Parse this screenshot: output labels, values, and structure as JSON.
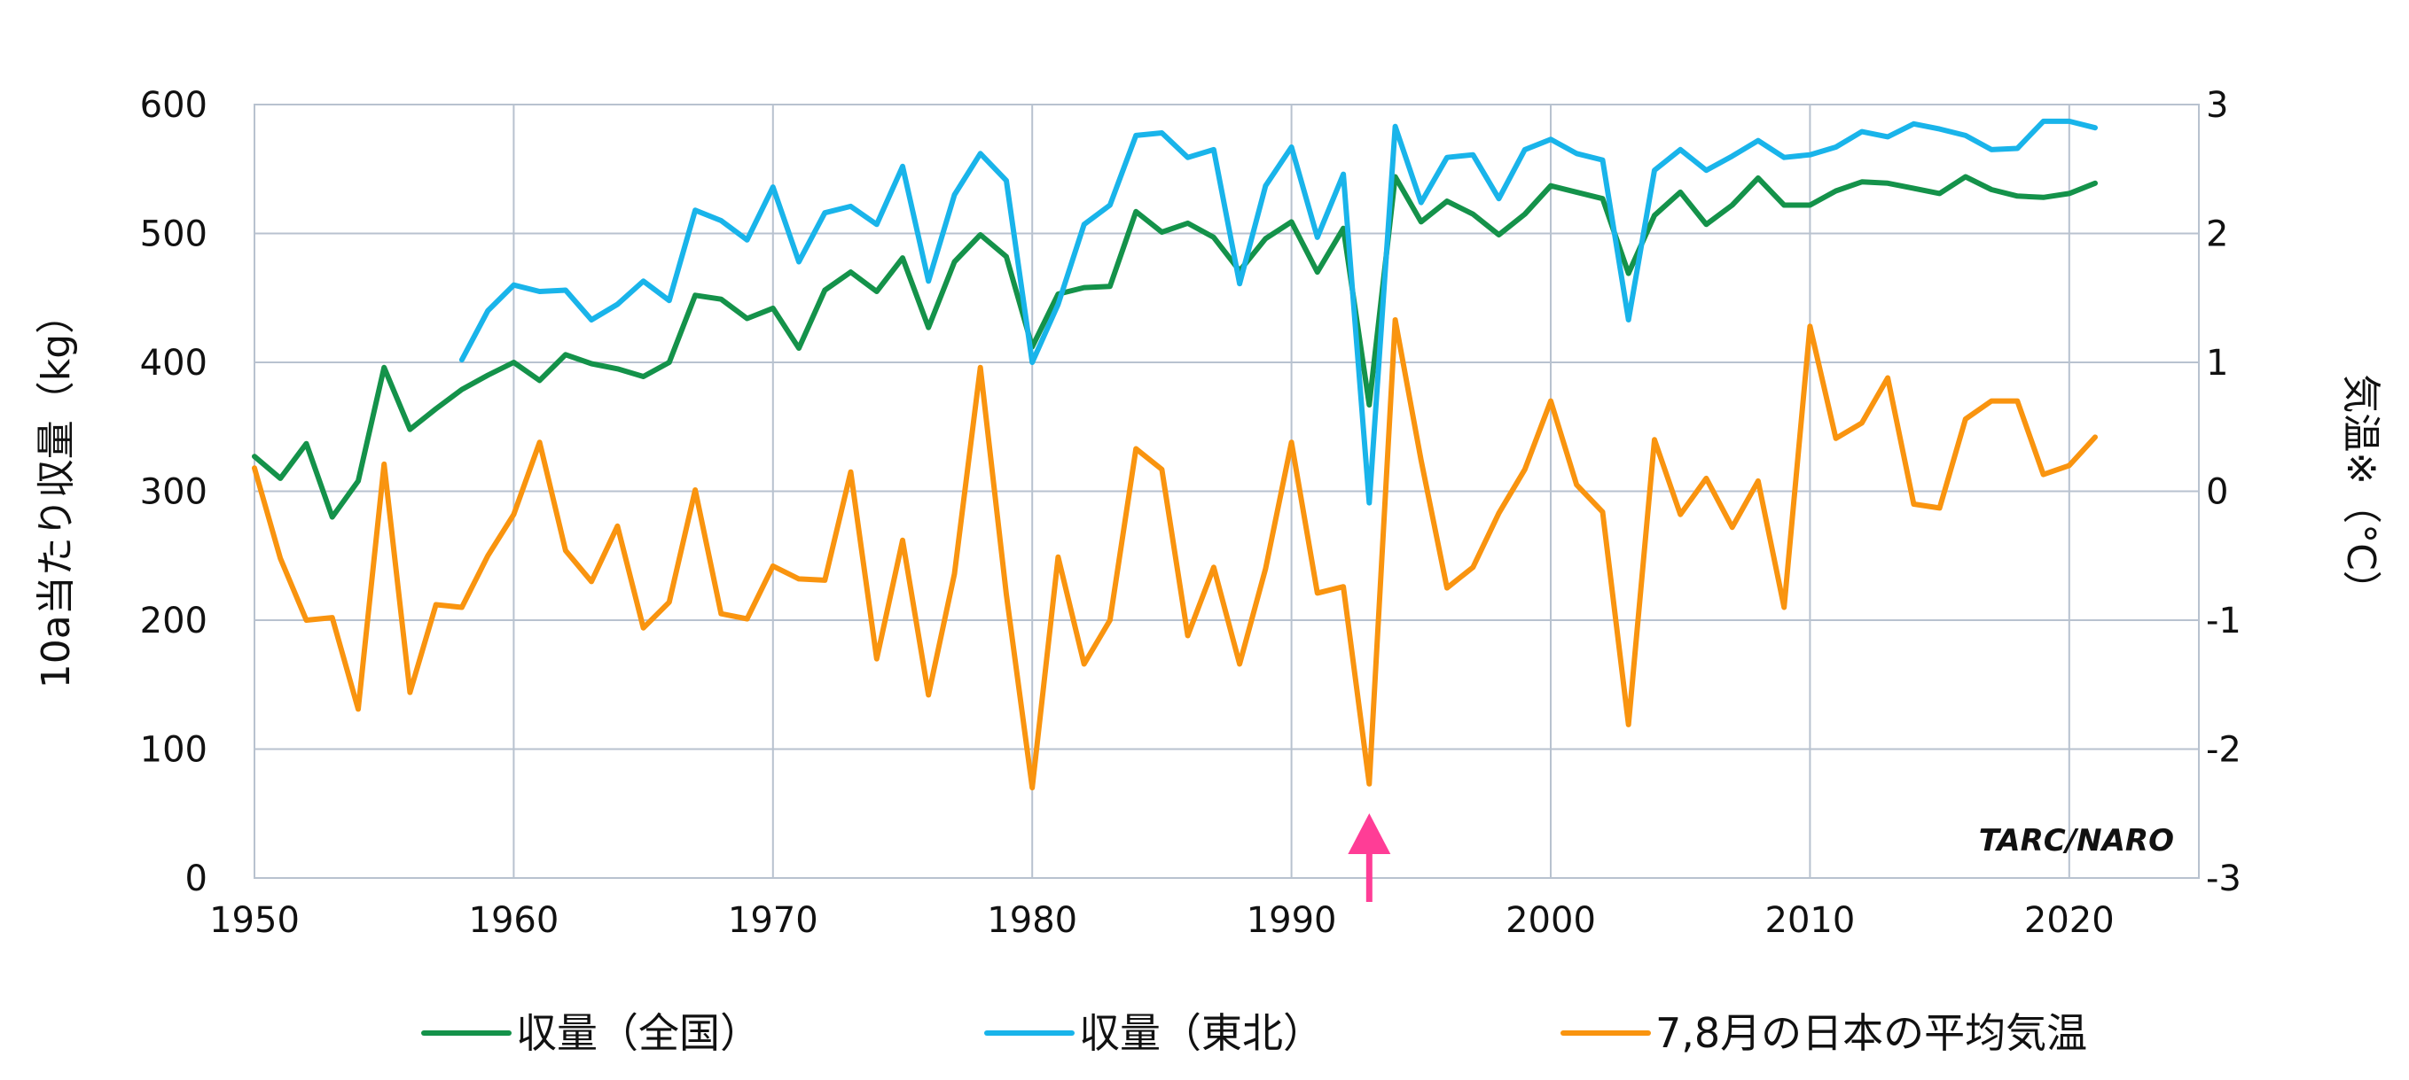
{
  "chart_data": {
    "type": "line",
    "title": "",
    "xlabel": "",
    "ylabel": "10a当たり収量（kg）",
    "ylabel_right": "気温※（°C）",
    "xlim": [
      1950,
      2025
    ],
    "ylim": [
      0,
      600
    ],
    "ylim_right": [
      -3,
      3
    ],
    "x_ticks": [
      "1950",
      "1960",
      "1970",
      "1980",
      "1990",
      "2000",
      "2010",
      "2020"
    ],
    "y_ticks": [
      "0",
      "100",
      "200",
      "300",
      "400",
      "500",
      "600"
    ],
    "y_ticks_right": [
      "-3",
      "-2",
      "-1",
      "0",
      "1",
      "2",
      "3"
    ],
    "grid": true,
    "legend_position": "bottom",
    "watermark": "TARC/NARO",
    "annotations": [
      {
        "type": "arrow",
        "x": 1993,
        "color": "#ff3d96"
      }
    ],
    "series": [
      {
        "name": "収量（全国）",
        "axis": "left",
        "color": "#14924a",
        "x": [
          1950,
          1951,
          1952,
          1953,
          1954,
          1955,
          1956,
          1957,
          1958,
          1959,
          1960,
          1961,
          1962,
          1963,
          1964,
          1965,
          1966,
          1967,
          1968,
          1969,
          1970,
          1971,
          1972,
          1973,
          1974,
          1975,
          1976,
          1977,
          1978,
          1979,
          1980,
          1981,
          1982,
          1983,
          1984,
          1985,
          1986,
          1987,
          1988,
          1989,
          1990,
          1991,
          1992,
          1993,
          1994,
          1995,
          1996,
          1997,
          1998,
          1999,
          2000,
          2001,
          2002,
          2003,
          2004,
          2005,
          2006,
          2007,
          2008,
          2009,
          2010,
          2011,
          2012,
          2013,
          2014,
          2015,
          2016,
          2017,
          2018,
          2019,
          2020,
          2021
        ],
        "values": [
          327,
          310,
          337,
          280,
          308,
          396,
          348,
          364,
          379,
          390,
          400,
          386,
          406,
          399,
          395,
          389,
          400,
          452,
          449,
          434,
          442,
          411,
          456,
          470,
          455,
          481,
          427,
          478,
          499,
          482,
          412,
          453,
          458,
          459,
          517,
          501,
          508,
          497,
          471,
          496,
          509,
          470,
          504,
          367,
          544,
          509,
          525,
          515,
          499,
          515,
          537,
          532,
          527,
          469,
          514,
          532,
          507,
          522,
          543,
          522,
          522,
          533,
          540,
          539,
          535,
          531,
          544,
          534,
          529,
          528,
          531,
          539
        ]
      },
      {
        "name": "収量（東北）",
        "axis": "left",
        "color": "#19b4ea",
        "x": [
          1958,
          1959,
          1960,
          1961,
          1962,
          1963,
          1964,
          1965,
          1966,
          1967,
          1968,
          1969,
          1970,
          1971,
          1972,
          1973,
          1974,
          1975,
          1976,
          1977,
          1978,
          1979,
          1980,
          1981,
          1982,
          1983,
          1984,
          1985,
          1986,
          1987,
          1988,
          1989,
          1990,
          1991,
          1992,
          1993,
          1994,
          1995,
          1996,
          1997,
          1998,
          1999,
          2000,
          2001,
          2002,
          2003,
          2004,
          2005,
          2006,
          2007,
          2008,
          2009,
          2010,
          2011,
          2012,
          2013,
          2014,
          2015,
          2016,
          2017,
          2018,
          2019,
          2020,
          2021
        ],
        "values": [
          402,
          440,
          460,
          455,
          456,
          433,
          445,
          463,
          448,
          518,
          510,
          495,
          536,
          478,
          516,
          521,
          507,
          552,
          463,
          530,
          562,
          541,
          400,
          445,
          507,
          522,
          576,
          578,
          559,
          565,
          461,
          537,
          567,
          497,
          546,
          291,
          583,
          524,
          559,
          561,
          527,
          565,
          573,
          562,
          557,
          433,
          549,
          565,
          549,
          560,
          572,
          559,
          561,
          567,
          579,
          575,
          585,
          581,
          576,
          565,
          566,
          587,
          587,
          582
        ]
      },
      {
        "name": "7,8月の日本の平均気温",
        "axis": "right",
        "color": "#f9940f",
        "x": [
          1950,
          1951,
          1952,
          1953,
          1954,
          1955,
          1956,
          1957,
          1958,
          1959,
          1960,
          1961,
          1962,
          1963,
          1964,
          1965,
          1966,
          1967,
          1968,
          1969,
          1970,
          1971,
          1972,
          1973,
          1974,
          1975,
          1976,
          1977,
          1978,
          1979,
          1980,
          1981,
          1982,
          1983,
          1984,
          1985,
          1986,
          1987,
          1988,
          1989,
          1990,
          1991,
          1992,
          1993,
          1994,
          1995,
          1996,
          1997,
          1998,
          1999,
          2000,
          2001,
          2002,
          2003,
          2004,
          2005,
          2006,
          2007,
          2008,
          2009,
          2010,
          2011,
          2012,
          2013,
          2014,
          2015,
          2016,
          2017,
          2018,
          2019,
          2020,
          2021
        ],
        "values": [
          0.18,
          -0.52,
          -1.0,
          -0.98,
          -1.69,
          0.21,
          -1.56,
          -0.88,
          -0.9,
          -0.5,
          -0.18,
          0.38,
          -0.46,
          -0.7,
          -0.27,
          -1.06,
          -0.86,
          0.01,
          -0.95,
          -0.99,
          -0.58,
          -0.68,
          -0.69,
          0.15,
          -1.3,
          -0.38,
          -1.58,
          -0.64,
          0.96,
          -0.8,
          -2.3,
          -0.51,
          -1.34,
          -1.0,
          0.33,
          0.17,
          -1.12,
          -0.59,
          -1.34,
          -0.6,
          0.38,
          -0.79,
          -0.74,
          -2.27,
          1.33,
          0.24,
          -0.75,
          -0.59,
          -0.17,
          0.17,
          0.7,
          0.05,
          -0.16,
          -1.81,
          0.4,
          -0.18,
          0.1,
          -0.28,
          0.08,
          -0.9,
          1.28,
          0.41,
          0.53,
          0.88,
          -0.1,
          -0.13,
          0.56,
          0.7,
          0.7,
          0.13,
          0.2,
          0.42
        ]
      }
    ]
  }
}
